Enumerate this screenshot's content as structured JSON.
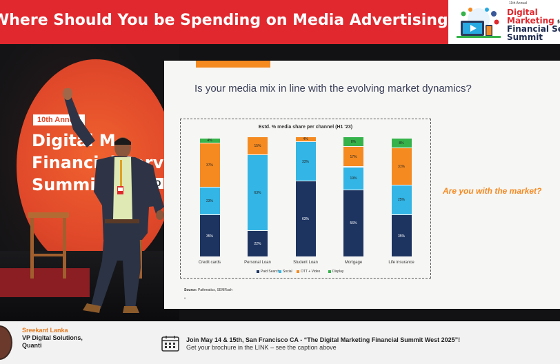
{
  "banner": {
    "title": "Where Should You be Spending on Media Advertising?",
    "color": "#e0282e"
  },
  "logo": {
    "annual": "11th Annual",
    "line1": "Digital",
    "line2_main": "Marketing",
    "line2_small": "for",
    "line3": "Financial Services",
    "line4": "Summit",
    "icon": "digital-devices-icon"
  },
  "stage": {
    "sign_tag": "10th Annual",
    "sign_line1": "Digital M",
    "sign_line2": "Financial Servi",
    "sign_line3": "Summit",
    "sign_yo": "YO"
  },
  "slide": {
    "question": "Is your media mix in line with the evolving market dynamics?",
    "cta": "Are you with the market?",
    "source_label": "Source:",
    "source_text": "Pathmatics, SEMRush",
    "page_num": "9"
  },
  "chart_data": {
    "type": "bar",
    "stacked": true,
    "title": "Estd. % media share per channel (H1 '23)",
    "categories": [
      "Credit cards",
      "Personal Loan",
      "Student Loan",
      "Mortgage",
      "Life insurance"
    ],
    "series": [
      {
        "name": "Paid Search",
        "color": "#1d3461",
        "values": [
          35,
          22,
          63,
          56,
          35
        ],
        "labels": [
          "35%",
          "22%",
          "63%",
          "56%",
          "35%"
        ]
      },
      {
        "name": "Social",
        "color": "#33b5e5",
        "values": [
          23,
          63,
          33,
          19,
          25
        ],
        "labels": [
          "23%",
          "63%",
          "33%",
          "19%",
          "25%"
        ]
      },
      {
        "name": "OTT + Video",
        "color": "#f58a21",
        "values": [
          37,
          15,
          4,
          17,
          31
        ],
        "labels": [
          "37%",
          "15%",
          "4%",
          "17%",
          "31%"
        ]
      },
      {
        "name": "Display",
        "color": "#35b34a",
        "values": [
          4,
          0,
          0,
          8,
          8
        ],
        "labels": [
          "4%",
          "0%",
          "0%",
          "8%",
          "8%"
        ]
      }
    ],
    "ylim": [
      0,
      100
    ],
    "legend": "bottom"
  },
  "lower_third": {
    "name": "Sreekant Lanka",
    "role": "VP Digital Solutions,",
    "company": "Quanti",
    "promo_line1": "Join May 14 & 15th, San Francisco CA - “The Digital Marketing Financial Summit West 2025”!",
    "promo_line2": "Get your brochure in the LINK – see the caption above"
  }
}
